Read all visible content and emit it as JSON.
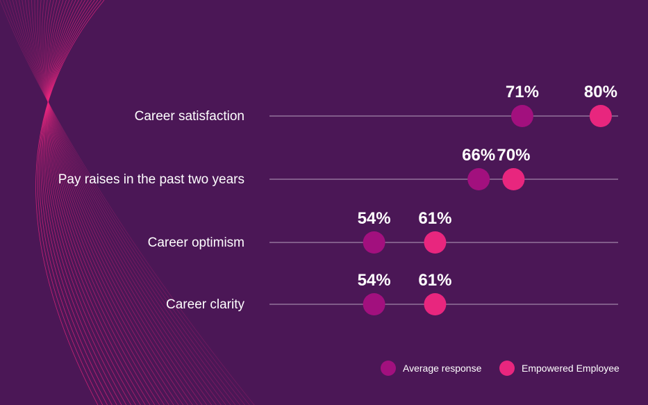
{
  "chart_data": {
    "type": "scatter",
    "title": "",
    "xlabel": "",
    "ylabel": "",
    "grid": false,
    "legend_position": "bottom-right",
    "unit": "%",
    "categories": [
      "Career satisfaction",
      "Pay raises in the past two years",
      "Career optimism",
      "Career clarity"
    ],
    "series": [
      {
        "name": "Average response",
        "color": "#a2107e",
        "values": [
          71,
          66,
          54,
          54
        ]
      },
      {
        "name": "Empowered Employee",
        "color": "#e8267e",
        "values": [
          80,
          70,
          61,
          61
        ]
      }
    ],
    "xlim": [
      42,
      82
    ]
  },
  "colors": {
    "background": "#4b1756",
    "track_line": "#b7a0bd",
    "decoration": "#e8267e"
  }
}
